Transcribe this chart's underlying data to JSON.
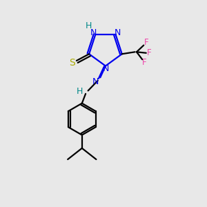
{
  "bg_color": "#e8e8e8",
  "atom_colors": {
    "N": "#0000ee",
    "S": "#aaaa00",
    "F": "#ee44aa",
    "C": "#000000",
    "H": "#008888"
  },
  "figsize": [
    3.0,
    3.0
  ],
  "dpi": 100
}
